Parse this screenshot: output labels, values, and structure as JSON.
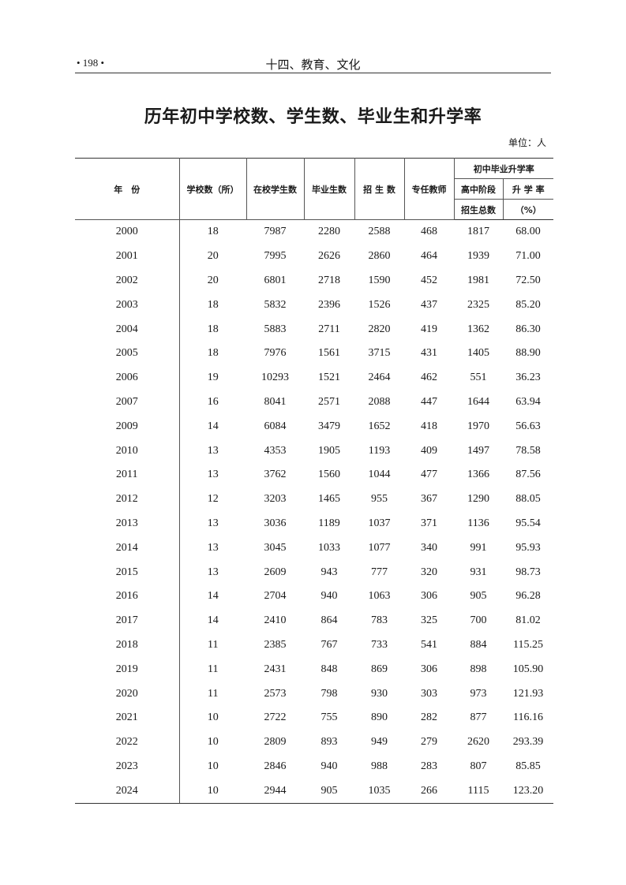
{
  "running_header": {
    "page_number": "• 198 •",
    "section": "十四、教育、文化"
  },
  "title": "历年初中学校数、学生数、毕业生和升学率",
  "unit": "单位：人",
  "table": {
    "headers": {
      "year": "年　份",
      "schools": "学校数（所）",
      "enrolled": "在校学生数",
      "graduates": "毕业生数",
      "admissions": "招 生 数",
      "teachers": "专任教师",
      "group": "初中毕业升学率",
      "hs_admissions_1": "高中阶段",
      "hs_admissions_2": "招生总数",
      "rate_1": "升 学 率",
      "rate_2": "（%）"
    },
    "rows": [
      [
        "2000",
        "18",
        "7987",
        "2280",
        "2588",
        "468",
        "1817",
        "68.00"
      ],
      [
        "2001",
        "20",
        "7995",
        "2626",
        "2860",
        "464",
        "1939",
        "71.00"
      ],
      [
        "2002",
        "20",
        "6801",
        "2718",
        "1590",
        "452",
        "1981",
        "72.50"
      ],
      [
        "2003",
        "18",
        "5832",
        "2396",
        "1526",
        "437",
        "2325",
        "85.20"
      ],
      [
        "2004",
        "18",
        "5883",
        "2711",
        "2820",
        "419",
        "1362",
        "86.30"
      ],
      [
        "2005",
        "18",
        "7976",
        "1561",
        "3715",
        "431",
        "1405",
        "88.90"
      ],
      [
        "2006",
        "19",
        "10293",
        "1521",
        "2464",
        "462",
        "551",
        "36.23"
      ],
      [
        "2007",
        "16",
        "8041",
        "2571",
        "2088",
        "447",
        "1644",
        "63.94"
      ],
      [
        "2009",
        "14",
        "6084",
        "3479",
        "1652",
        "418",
        "1970",
        "56.63"
      ],
      [
        "2010",
        "13",
        "4353",
        "1905",
        "1193",
        "409",
        "1497",
        "78.58"
      ],
      [
        "2011",
        "13",
        "3762",
        "1560",
        "1044",
        "477",
        "1366",
        "87.56"
      ],
      [
        "2012",
        "12",
        "3203",
        "1465",
        "955",
        "367",
        "1290",
        "88.05"
      ],
      [
        "2013",
        "13",
        "3036",
        "1189",
        "1037",
        "371",
        "1136",
        "95.54"
      ],
      [
        "2014",
        "13",
        "3045",
        "1033",
        "1077",
        "340",
        "991",
        "95.93"
      ],
      [
        "2015",
        "13",
        "2609",
        "943",
        "777",
        "320",
        "931",
        "98.73"
      ],
      [
        "2016",
        "14",
        "2704",
        "940",
        "1063",
        "306",
        "905",
        "96.28"
      ],
      [
        "2017",
        "14",
        "2410",
        "864",
        "783",
        "325",
        "700",
        "81.02"
      ],
      [
        "2018",
        "11",
        "2385",
        "767",
        "733",
        "541",
        "884",
        "115.25"
      ],
      [
        "2019",
        "11",
        "2431",
        "848",
        "869",
        "306",
        "898",
        "105.90"
      ],
      [
        "2020",
        "11",
        "2573",
        "798",
        "930",
        "303",
        "973",
        "121.93"
      ],
      [
        "2021",
        "10",
        "2722",
        "755",
        "890",
        "282",
        "877",
        "116.16"
      ],
      [
        "2022",
        "10",
        "2809",
        "893",
        "949",
        "279",
        "2620",
        "293.39"
      ],
      [
        "2023",
        "10",
        "2846",
        "940",
        "988",
        "283",
        "807",
        "85.85"
      ],
      [
        "2024",
        "10",
        "2944",
        "905",
        "1035",
        "266",
        "1115",
        "123.20"
      ]
    ]
  }
}
